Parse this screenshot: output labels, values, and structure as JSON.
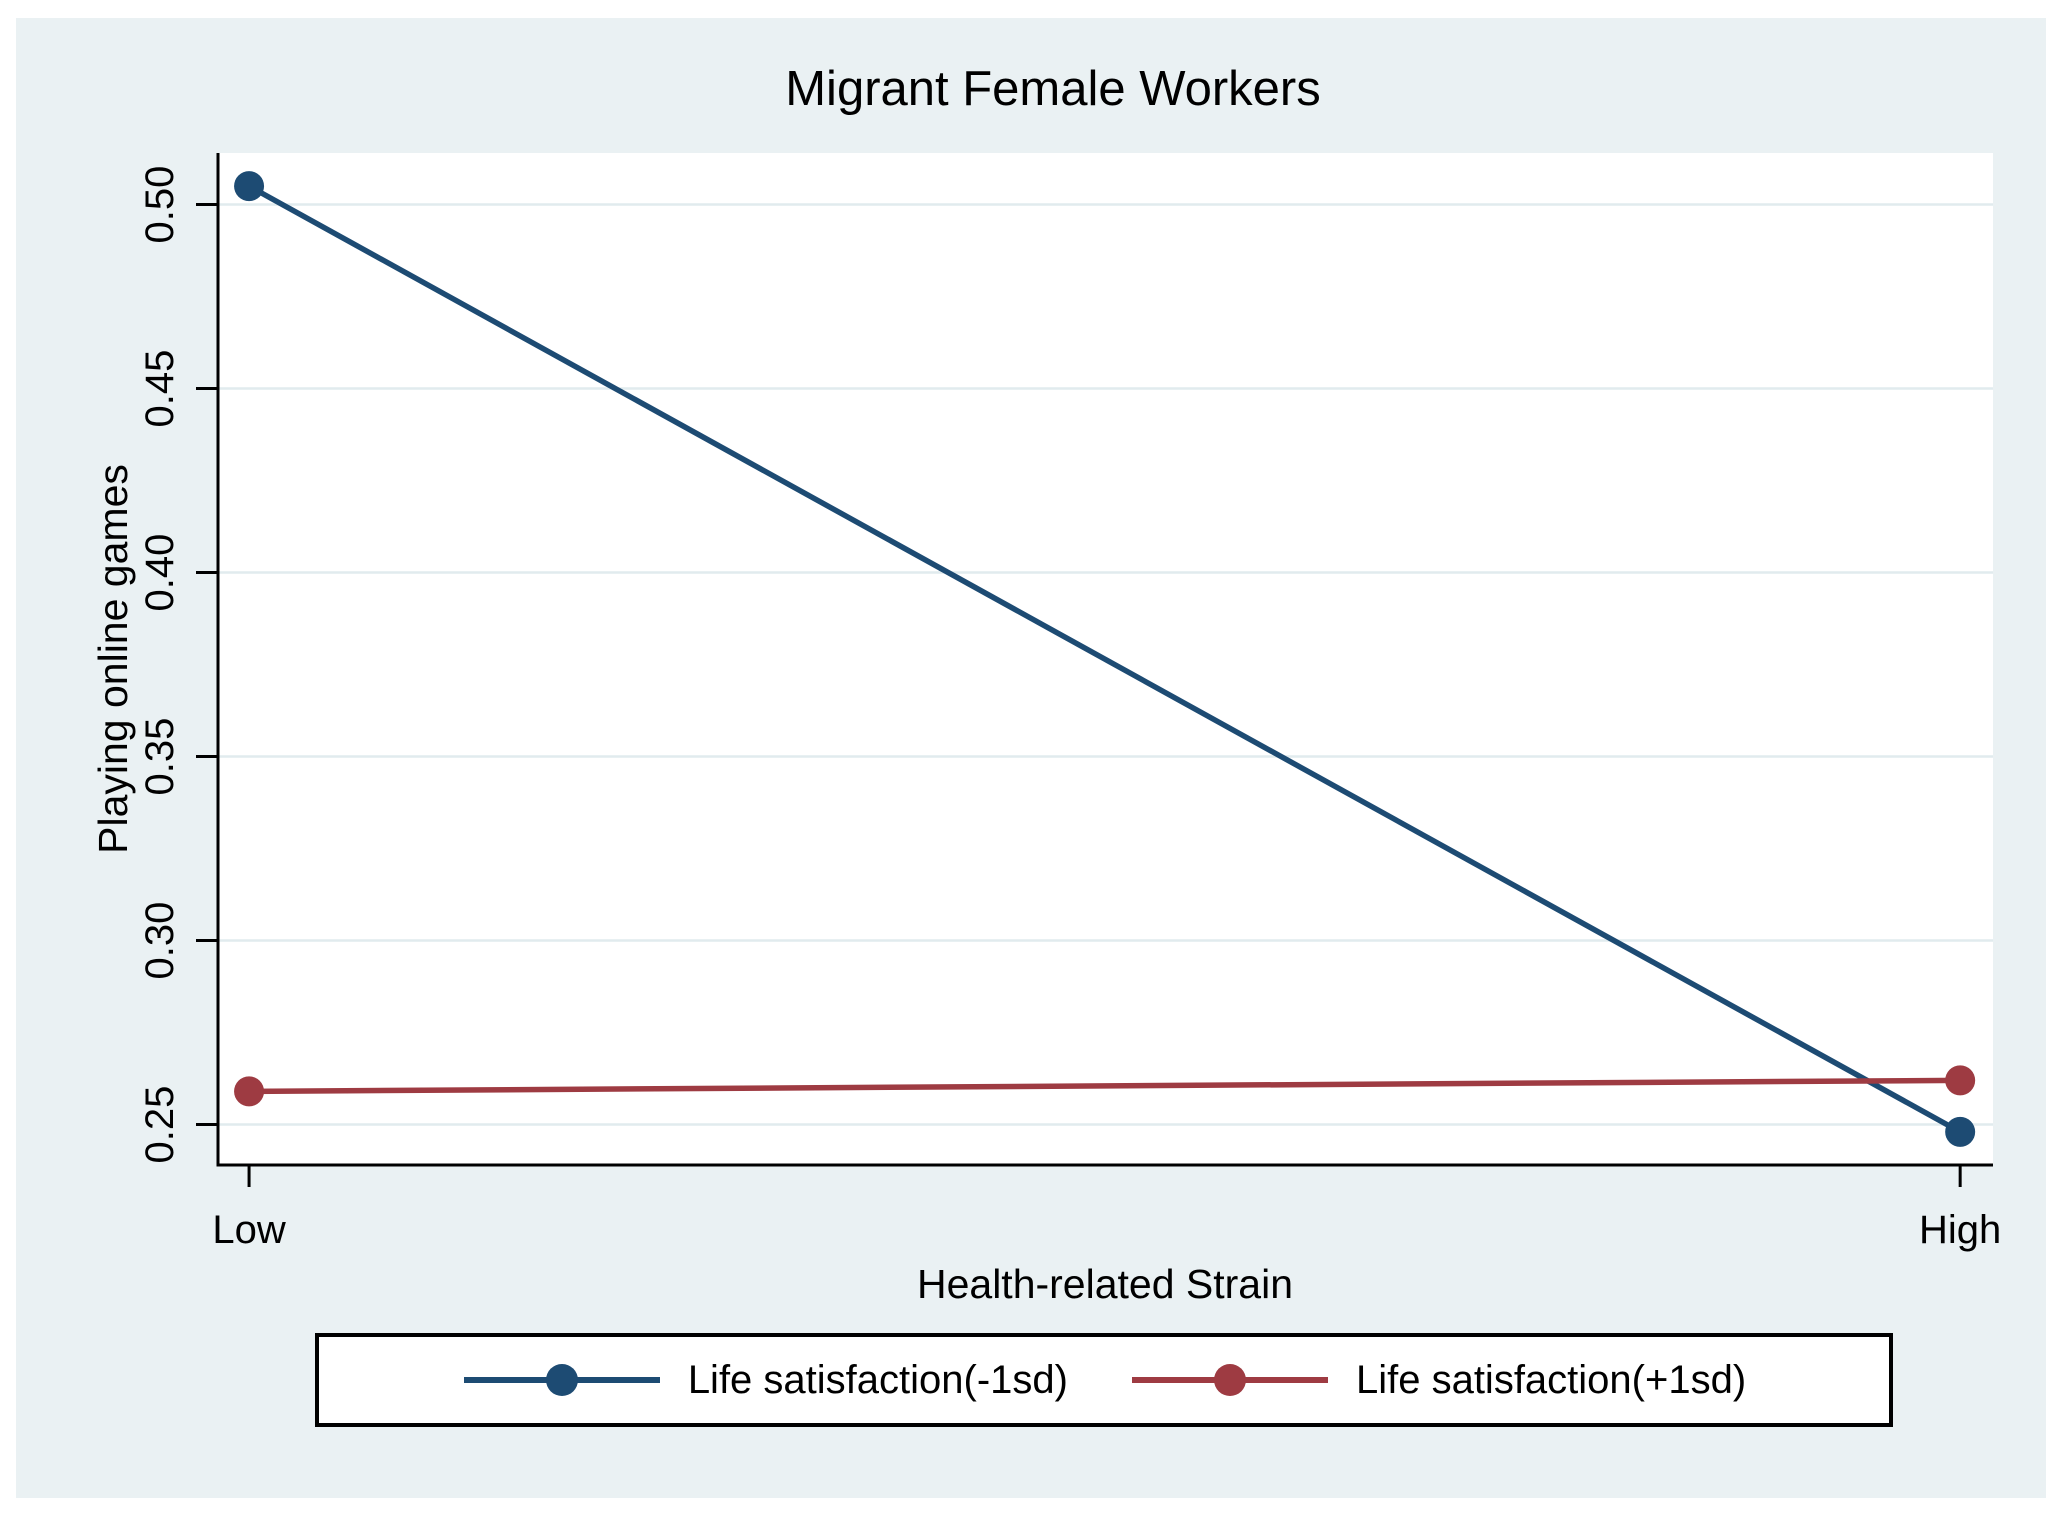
{
  "chart_data": {
    "type": "line",
    "title": "Migrant Female Workers",
    "categories": [
      "Low",
      "High"
    ],
    "series": [
      {
        "name": "Life satisfaction(-1sd)",
        "values": [
          0.505,
          0.248
        ],
        "color": "#1d4b73"
      },
      {
        "name": "Life satisfaction(+1sd)",
        "values": [
          0.259,
          0.262
        ],
        "color": "#9e3b42"
      }
    ],
    "xlabel": "Health-related Strain",
    "ylabel": "Playing online games",
    "yticks": [
      0.25,
      0.3,
      0.35,
      0.4,
      0.45,
      0.5
    ],
    "ytick_decimals": 2,
    "ylim": [
      0.239,
      0.514
    ],
    "grid": true,
    "legend_position": "bottom",
    "colors": {
      "canvas_bg": "#eaf1f3",
      "plot_bg": "#ffffff",
      "grid": "#e1ebee",
      "axis": "#000000",
      "title": "#203a66",
      "text": "#000000",
      "legend_bg": "#ffffff",
      "legend_border": "#000000"
    }
  }
}
